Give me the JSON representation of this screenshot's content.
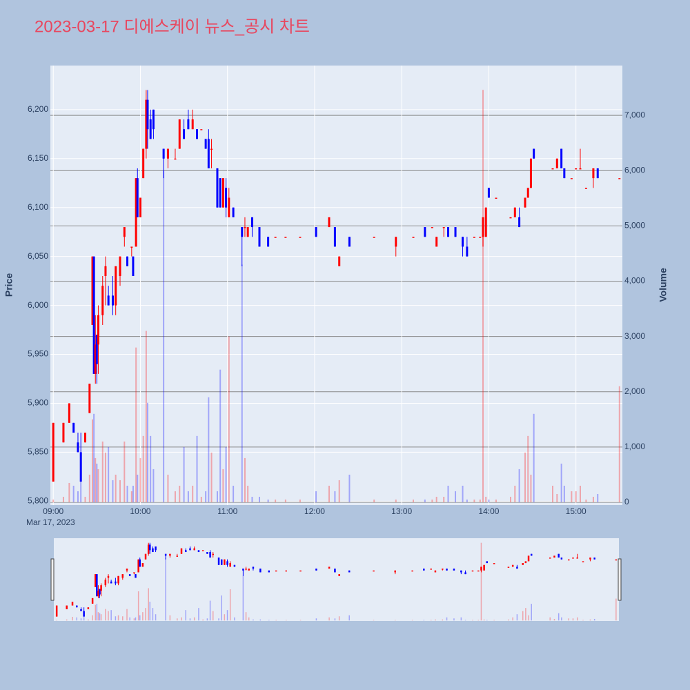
{
  "chart_data": {
    "type": "candlestick",
    "title": "2023-03-17 디에스케이 뉴스_공시 차트",
    "x_sublabel": "Mar 17, 2023",
    "y_label": "Price",
    "y2_label": "Volume",
    "increasing_color": "#ff0000",
    "decreasing_color": "#0000ff",
    "x": [
      "09:00",
      "09:07",
      "09:11",
      "09:14",
      "09:17",
      "09:19",
      "09:22",
      "09:25",
      "09:27",
      "09:28",
      "09:29",
      "09:30",
      "09:31",
      "09:34",
      "09:36",
      "09:38",
      "09:41",
      "09:43",
      "09:46",
      "09:49",
      "09:51",
      "09:54",
      "09:55",
      "09:57",
      "09:58",
      "10:00",
      "10:02",
      "10:04",
      "10:05",
      "10:07",
      "10:09",
      "10:16",
      "10:19",
      "10:24",
      "10:27",
      "10:30",
      "10:33",
      "10:36",
      "10:39",
      "10:42",
      "10:45",
      "10:47",
      "10:49",
      "10:53",
      "10:55",
      "10:57",
      "10:59",
      "11:01",
      "11:04",
      "11:10",
      "11:12",
      "11:14",
      "11:17",
      "11:22",
      "11:28",
      "11:33",
      "11:40",
      "11:50",
      "12:01",
      "12:10",
      "12:14",
      "12:17",
      "12:24",
      "12:41",
      "12:56",
      "13:08",
      "13:16",
      "13:21",
      "13:24",
      "13:29",
      "13:32",
      "13:37",
      "13:42",
      "13:45",
      "13:50",
      "13:54",
      "13:56",
      "13:58",
      "14:00",
      "14:05",
      "14:15",
      "14:18",
      "14:21",
      "14:25",
      "14:27",
      "14:29",
      "14:31",
      "14:44",
      "14:47",
      "14:50",
      "14:52",
      "14:57",
      "15:00",
      "15:03",
      "15:07",
      "15:12",
      "15:15",
      "15:30"
    ],
    "open": [
      5820,
      5860,
      5880,
      5880,
      5860,
      5850,
      5860,
      5890,
      5980,
      6050,
      5930,
      5970,
      5960,
      5990,
      6030,
      6010,
      6010,
      6000,
      6030,
      6070,
      6050,
      6060,
      6050,
      6060,
      6130,
      6090,
      6130,
      6160,
      6210,
      6190,
      6200,
      6160,
      6150,
      6150,
      6160,
      6180,
      6190,
      6180,
      6180,
      6180,
      6170,
      6170,
      6160,
      6140,
      6130,
      6100,
      6120,
      6090,
      6100,
      6080,
      6080,
      6070,
      6090,
      6080,
      6070,
      6070,
      6070,
      6070,
      6080,
      6080,
      6080,
      6040,
      6070,
      6070,
      6060,
      6070,
      6080,
      6080,
      6060,
      6080,
      6080,
      6080,
      6070,
      6060,
      6070,
      6070,
      6070,
      6070,
      6120,
      6110,
      6090,
      6090,
      6090,
      6100,
      6110,
      6120,
      6160,
      6140,
      6140,
      6160,
      6140,
      6130,
      6140,
      6140,
      6120,
      6130,
      6140,
      6130
    ],
    "high": [
      5880,
      5880,
      5900,
      5880,
      5870,
      5870,
      5870,
      5920,
      6050,
      6050,
      5990,
      5970,
      6000,
      6030,
      6050,
      6020,
      6030,
      6040,
      6050,
      6080,
      6050,
      6060,
      6050,
      6130,
      6140,
      6110,
      6160,
      6220,
      6220,
      6200,
      6200,
      6160,
      6160,
      6160,
      6190,
      6190,
      6200,
      6200,
      6180,
      6180,
      6170,
      6180,
      6170,
      6140,
      6130,
      6130,
      6130,
      6120,
      6100,
      6080,
      6090,
      6080,
      6090,
      6080,
      6070,
      6070,
      6070,
      6070,
      6080,
      6090,
      6080,
      6050,
      6070,
      6070,
      6070,
      6070,
      6080,
      6080,
      6070,
      6080,
      6080,
      6080,
      6070,
      6070,
      6070,
      6070,
      6090,
      6100,
      6120,
      6110,
      6090,
      6100,
      6100,
      6110,
      6120,
      6150,
      6160,
      6140,
      6150,
      6160,
      6140,
      6130,
      6140,
      6160,
      6120,
      6140,
      6140,
      6130
    ],
    "low": [
      5820,
      5860,
      5880,
      5870,
      5850,
      5820,
      5860,
      5890,
      5980,
      5930,
      5920,
      5920,
      5930,
      5980,
      6000,
      6000,
      5990,
      5990,
      6020,
      6060,
      6040,
      6050,
      6030,
      6060,
      6090,
      6090,
      6130,
      6150,
      6160,
      6170,
      6170,
      6130,
      6140,
      6150,
      6160,
      6170,
      6180,
      6180,
      6170,
      6180,
      6160,
      6140,
      6140,
      6100,
      6100,
      6100,
      6090,
      6090,
      6090,
      6040,
      6070,
      6070,
      6070,
      6060,
      6060,
      6070,
      6070,
      6070,
      6070,
      6080,
      6060,
      6040,
      6060,
      6070,
      6050,
      6070,
      6070,
      6080,
      6060,
      6070,
      6070,
      6070,
      6050,
      6050,
      6070,
      6070,
      6060,
      6070,
      6110,
      6110,
      6090,
      6090,
      6080,
      6100,
      6110,
      6120,
      6150,
      6140,
      6140,
      6140,
      6130,
      6130,
      6140,
      6140,
      6120,
      6120,
      6130,
      6130
    ],
    "close": [
      5880,
      5880,
      5900,
      5870,
      5850,
      5820,
      5870,
      5920,
      6050,
      5930,
      5960,
      5940,
      5990,
      6020,
      6040,
      6000,
      6000,
      6040,
      6050,
      6080,
      6040,
      6060,
      6030,
      6130,
      6090,
      6110,
      6160,
      6210,
      6180,
      6170,
      6180,
      6150,
      6160,
      6150,
      6190,
      6170,
      6180,
      6190,
      6170,
      6180,
      6160,
      6140,
      6160,
      6100,
      6100,
      6130,
      6100,
      6110,
      6090,
      6070,
      6080,
      6080,
      6080,
      6060,
      6060,
      6070,
      6070,
      6070,
      6070,
      6090,
      6060,
      6050,
      6060,
      6070,
      6070,
      6070,
      6070,
      6080,
      6070,
      6080,
      6070,
      6070,
      6060,
      6050,
      6070,
      6070,
      6090,
      6100,
      6110,
      6110,
      6090,
      6100,
      6080,
      6110,
      6120,
      6150,
      6150,
      6140,
      6150,
      6140,
      6130,
      6130,
      6140,
      6140,
      6120,
      6140,
      6130,
      6130
    ],
    "volume": [
      50,
      100,
      350,
      300,
      200,
      600,
      100,
      500,
      1500,
      1600,
      800,
      700,
      600,
      1100,
      900,
      1000,
      400,
      500,
      400,
      1100,
      300,
      200,
      300,
      2800,
      500,
      800,
      1200,
      3100,
      1800,
      1200,
      600,
      6000,
      500,
      200,
      300,
      1000,
      200,
      300,
      1200,
      100,
      200,
      1900,
      900,
      200,
      2400,
      600,
      1000,
      3000,
      300,
      4300,
      800,
      300,
      100,
      100,
      50,
      50,
      50,
      50,
      200,
      300,
      200,
      400,
      500,
      50,
      50,
      50,
      50,
      50,
      100,
      100,
      300,
      200,
      300,
      50,
      50,
      50,
      7460,
      100,
      50,
      50,
      100,
      300,
      600,
      900,
      1200,
      500,
      1600,
      300,
      150,
      700,
      300,
      200,
      200,
      300,
      50,
      100,
      150,
      2100
    ],
    "xlim": [
      "08:58",
      "15:32"
    ],
    "xticks": [
      "09:00",
      "10:00",
      "11:00",
      "12:00",
      "13:00",
      "14:00",
      "15:00"
    ],
    "ylim": [
      5796,
      6245
    ],
    "yticks": [
      {
        "value": 5800,
        "label": "5,800"
      },
      {
        "value": 5850,
        "label": "5,850"
      },
      {
        "value": 5900,
        "label": "5,900"
      },
      {
        "value": 5950,
        "label": "5,950"
      },
      {
        "value": 6000,
        "label": "6,000"
      },
      {
        "value": 6050,
        "label": "6,050"
      },
      {
        "value": 6100,
        "label": "6,100"
      },
      {
        "value": 6150,
        "label": "6,150"
      },
      {
        "value": 6200,
        "label": "6,200"
      }
    ],
    "y2lim": [
      -50,
      7900
    ],
    "y2ticks": [
      0,
      {
        "value": 1000,
        "label": "1,000"
      },
      {
        "value": 2000,
        "label": "2,000"
      },
      {
        "value": 3000,
        "label": "3,000"
      },
      {
        "value": 4000,
        "label": "4,000"
      },
      {
        "value": 5000,
        "label": "5,000"
      },
      {
        "value": 6000,
        "label": "6,000"
      },
      {
        "value": 7000,
        "label": "7,000"
      }
    ],
    "grid": true
  }
}
